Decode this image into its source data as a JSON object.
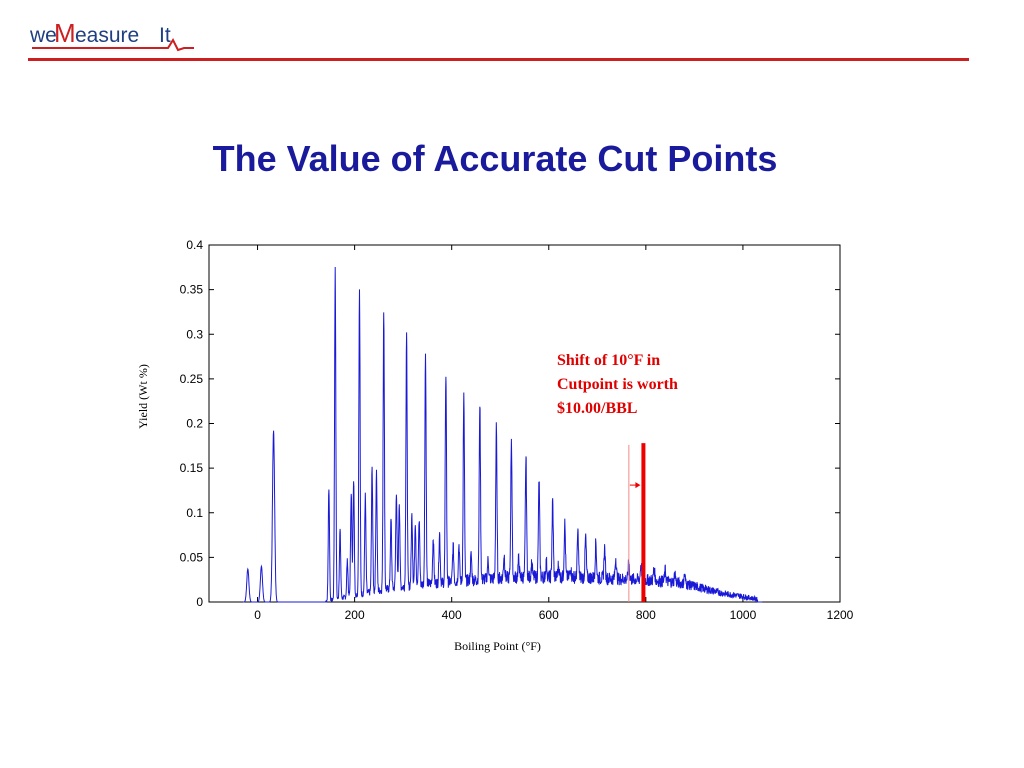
{
  "logo": {
    "text_we": "we",
    "text_m": "M",
    "text_rest": "easure",
    "text_it": "It"
  },
  "slide": {
    "title": "The Value of Accurate Cut Points"
  },
  "colors": {
    "title": "#1a1a9c",
    "accent_rule": "#cc1f1f",
    "series": "#1a1ad6",
    "marker": "#ee0000"
  },
  "annotation": {
    "line1": "Shift of 10°F in",
    "line2": "Cutpoint is worth",
    "line3": "$10.00/BBL"
  },
  "chart_data": {
    "type": "line",
    "xlabel": "Boiling Point (°F)",
    "ylabel": "Yield (Wt %)",
    "xlim": [
      -100,
      1200
    ],
    "ylim": [
      0,
      0.4
    ],
    "xticks": [
      0,
      200,
      400,
      600,
      800,
      1000,
      1200
    ],
    "xtick_labels": [
      "0",
      "200",
      "400",
      "600",
      "800",
      "1000",
      "1200"
    ],
    "yticks": [
      0,
      0.05,
      0.1,
      0.15,
      0.2,
      0.25,
      0.3,
      0.35,
      0.4
    ],
    "ytick_labels": [
      "0",
      "0.05",
      "0.1",
      "0.15",
      "0.2",
      "0.25",
      "0.3",
      "0.35",
      "0.4"
    ],
    "grid": false,
    "baseline_points": [
      [
        140,
        0.0
      ],
      [
        180,
        0.004
      ],
      [
        220,
        0.008
      ],
      [
        260,
        0.012
      ],
      [
        300,
        0.015
      ],
      [
        350,
        0.018
      ],
      [
        400,
        0.02
      ],
      [
        450,
        0.022
      ],
      [
        500,
        0.024
      ],
      [
        550,
        0.025
      ],
      [
        600,
        0.025
      ],
      [
        650,
        0.025
      ],
      [
        700,
        0.024
      ],
      [
        750,
        0.023
      ],
      [
        800,
        0.022
      ],
      [
        850,
        0.02
      ],
      [
        880,
        0.018
      ],
      [
        920,
        0.013
      ],
      [
        960,
        0.008
      ],
      [
        1000,
        0.005
      ],
      [
        1030,
        0.002
      ]
    ],
    "peaks": [
      {
        "x": -20,
        "y": 0.037
      },
      {
        "x": 8,
        "y": 0.04
      },
      {
        "x": 33,
        "y": 0.192
      },
      {
        "x": 147,
        "y": 0.127
      },
      {
        "x": 160,
        "y": 0.373
      },
      {
        "x": 170,
        "y": 0.08
      },
      {
        "x": 185,
        "y": 0.045
      },
      {
        "x": 193,
        "y": 0.122
      },
      {
        "x": 198,
        "y": 0.137
      },
      {
        "x": 210,
        "y": 0.347
      },
      {
        "x": 222,
        "y": 0.118
      },
      {
        "x": 236,
        "y": 0.148
      },
      {
        "x": 245,
        "y": 0.145
      },
      {
        "x": 260,
        "y": 0.327
      },
      {
        "x": 275,
        "y": 0.09
      },
      {
        "x": 286,
        "y": 0.122
      },
      {
        "x": 292,
        "y": 0.11
      },
      {
        "x": 307,
        "y": 0.298
      },
      {
        "x": 318,
        "y": 0.095
      },
      {
        "x": 325,
        "y": 0.088
      },
      {
        "x": 333,
        "y": 0.09
      },
      {
        "x": 346,
        "y": 0.276
      },
      {
        "x": 362,
        "y": 0.07
      },
      {
        "x": 375,
        "y": 0.075
      },
      {
        "x": 388,
        "y": 0.254
      },
      {
        "x": 403,
        "y": 0.06
      },
      {
        "x": 415,
        "y": 0.062
      },
      {
        "x": 425,
        "y": 0.227
      },
      {
        "x": 440,
        "y": 0.05
      },
      {
        "x": 458,
        "y": 0.221
      },
      {
        "x": 475,
        "y": 0.045
      },
      {
        "x": 492,
        "y": 0.192
      },
      {
        "x": 508,
        "y": 0.05
      },
      {
        "x": 523,
        "y": 0.182
      },
      {
        "x": 538,
        "y": 0.045
      },
      {
        "x": 553,
        "y": 0.16
      },
      {
        "x": 565,
        "y": 0.04
      },
      {
        "x": 580,
        "y": 0.135
      },
      {
        "x": 595,
        "y": 0.042
      },
      {
        "x": 608,
        "y": 0.11
      },
      {
        "x": 620,
        "y": 0.038
      },
      {
        "x": 633,
        "y": 0.085
      },
      {
        "x": 645,
        "y": 0.035
      },
      {
        "x": 660,
        "y": 0.076
      },
      {
        "x": 676,
        "y": 0.07
      },
      {
        "x": 697,
        "y": 0.064
      },
      {
        "x": 715,
        "y": 0.058
      },
      {
        "x": 738,
        "y": 0.047
      },
      {
        "x": 765,
        "y": 0.043
      },
      {
        "x": 790,
        "y": 0.04
      },
      {
        "x": 817,
        "y": 0.036
      },
      {
        "x": 840,
        "y": 0.033
      },
      {
        "x": 860,
        "y": 0.03
      },
      {
        "x": 880,
        "y": 0.028
      }
    ],
    "cutpoint_markers": [
      {
        "name": "original-cut",
        "x": 765,
        "y_top": 0.176
      },
      {
        "name": "shifted-cut",
        "x": 795,
        "y_top": 0.178
      }
    ]
  }
}
